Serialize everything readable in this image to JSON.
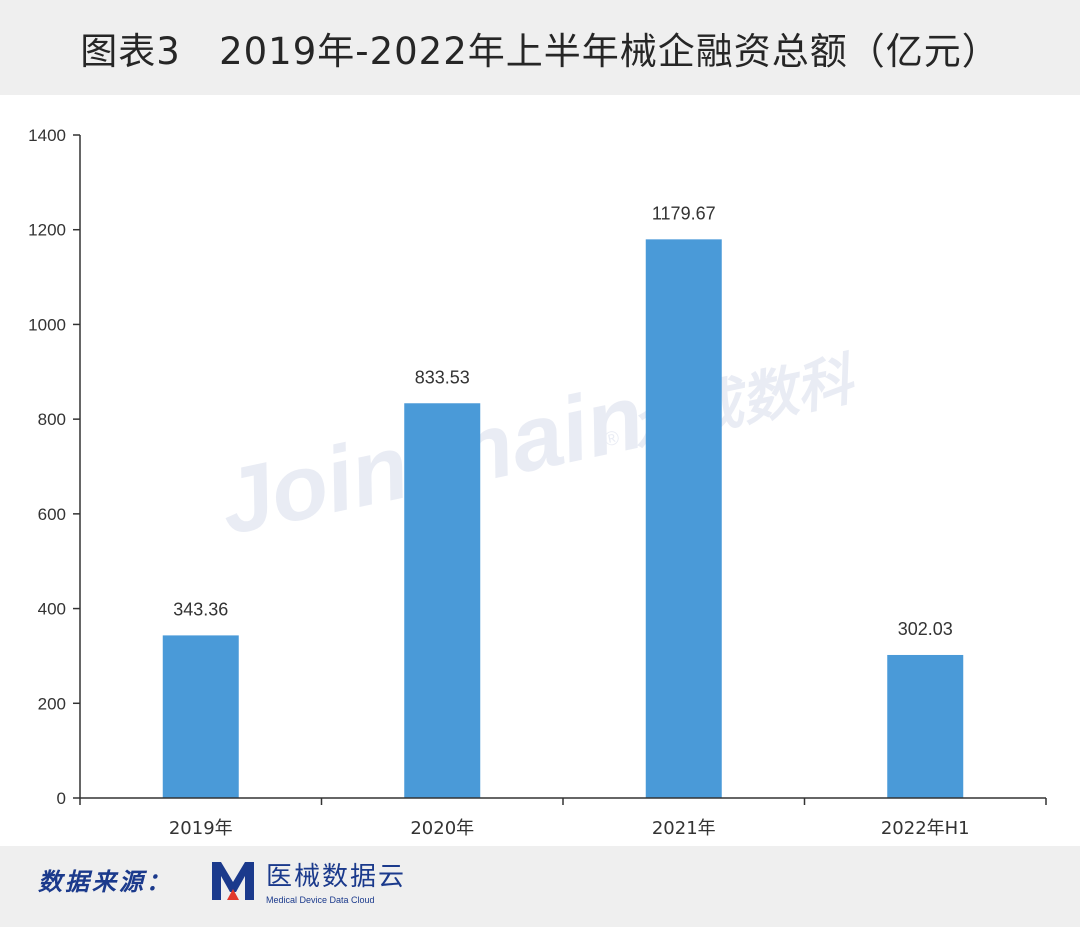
{
  "title": "图表3   2019年-2022年上半年械企融资总额（亿元）",
  "watermark": {
    "latin": "Joinchain",
    "cn": "众成数科",
    "reg": "®"
  },
  "footer": {
    "source_label": "数据来源：",
    "brand_name": "医械数据云",
    "brand_sub": "Medical Device Data Cloud"
  },
  "colors": {
    "bar": "#4a9ad8",
    "brand": "#1b3a8c",
    "logo_accent": "#e2382b"
  },
  "chart_data": {
    "type": "bar",
    "title": "图表3   2019年-2022年上半年械企融资总额（亿元）",
    "xlabel": "",
    "ylabel": "",
    "categories": [
      "2019年",
      "2020年",
      "2021年",
      "2022年H1"
    ],
    "values": [
      343.36,
      833.53,
      1179.67,
      302.03
    ],
    "value_labels": [
      "343.36",
      "833.53",
      "1179.67",
      "302.03"
    ],
    "ylim": [
      0,
      1400
    ],
    "yticks": [
      0,
      200,
      400,
      600,
      800,
      1000,
      1200,
      1400
    ],
    "grid": false,
    "legend": "none"
  }
}
